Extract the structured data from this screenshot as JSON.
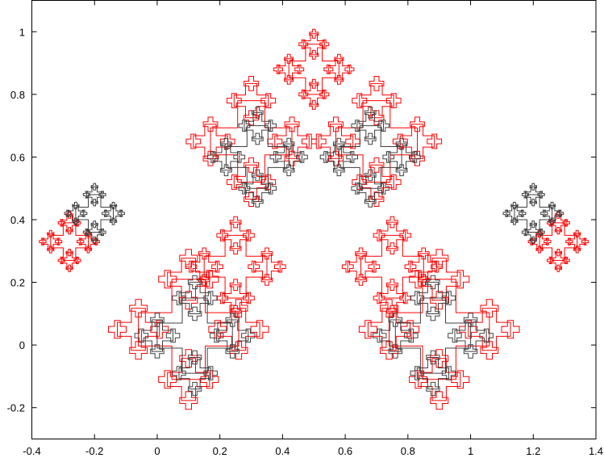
{
  "chart_data": {
    "type": "line",
    "title": "",
    "xlabel": "",
    "ylabel": "",
    "xlim": [
      -0.4,
      1.4
    ],
    "ylim": [
      -0.3,
      1.1
    ],
    "xticks": [
      "-0.4",
      "-0.2",
      "0",
      "0.2",
      "0.4",
      "0.6",
      "0.8",
      "1",
      "1.2",
      "1.4"
    ],
    "yticks": [
      "-0.2",
      "0",
      "0.2",
      "0.4",
      "0.6",
      "0.8",
      "1"
    ],
    "grid": false,
    "legend": "none",
    "series": [
      {
        "color": "#ff0000",
        "shape": "recursive cross fractal, symmetric about x = 0.5",
        "clusters": [
          [
            0.1,
            0.05,
            0.16
          ],
          [
            0.9,
            0.05,
            0.16
          ],
          [
            0.3,
            0.65,
            0.13
          ],
          [
            0.7,
            0.65,
            0.13
          ],
          [
            0.5,
            0.88,
            0.08
          ],
          [
            -0.28,
            0.33,
            0.06
          ],
          [
            1.28,
            0.33,
            0.06
          ],
          [
            0.25,
            0.25,
            0.1
          ],
          [
            0.75,
            0.25,
            0.1
          ]
        ]
      },
      {
        "color": "#404040",
        "shape": "recursive cross fractal, symmetric about x = 0.5",
        "clusters": [
          [
            0.12,
            0.03,
            0.12
          ],
          [
            0.88,
            0.03,
            0.12
          ],
          [
            0.32,
            0.6,
            0.1
          ],
          [
            0.68,
            0.6,
            0.1
          ],
          [
            -0.2,
            0.42,
            0.06
          ],
          [
            1.2,
            0.42,
            0.06
          ]
        ]
      }
    ]
  }
}
